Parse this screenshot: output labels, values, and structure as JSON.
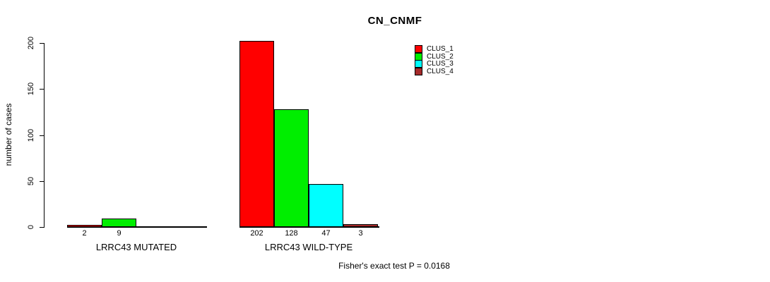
{
  "chart_data": {
    "type": "bar",
    "title": "CN_CNMF",
    "ylabel": "number of cases",
    "xlabel": "",
    "ylim": [
      0,
      200
    ],
    "yticks": [
      0,
      50,
      100,
      150,
      200
    ],
    "grid": false,
    "legend_position": "top-right",
    "categories": [
      "LRRC43 MUTATED",
      "LRRC43 WILD-TYPE"
    ],
    "series": [
      {
        "name": "CLUS_1",
        "color": "#ff0000",
        "values": [
          2,
          202
        ]
      },
      {
        "name": "CLUS_2",
        "color": "#00ee00",
        "values": [
          9,
          128
        ]
      },
      {
        "name": "CLUS_3",
        "color": "#00ffff",
        "values": [
          0,
          47
        ]
      },
      {
        "name": "CLUS_4",
        "color": "#a52a2a",
        "values": [
          0,
          3
        ]
      }
    ],
    "bar_value_labels_shown": [
      "2",
      "9",
      "202",
      "128",
      "47",
      "3"
    ],
    "annotation": "Fisher's exact test P = 0.0168",
    "axis_color": "#000000",
    "background_color": "#ffffff"
  }
}
